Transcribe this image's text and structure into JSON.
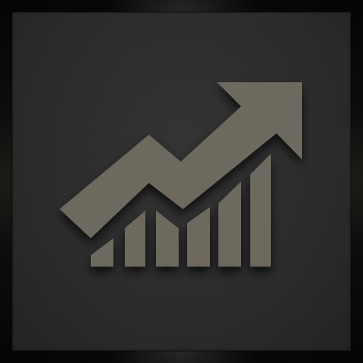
{
  "app_icon": {
    "icon_name": "growth-chart-icon",
    "colors": {
      "frame_highlight": "#d8d6c8",
      "panel_background": "#2b2b2b",
      "glyph_fill": "#6e695f"
    }
  }
}
